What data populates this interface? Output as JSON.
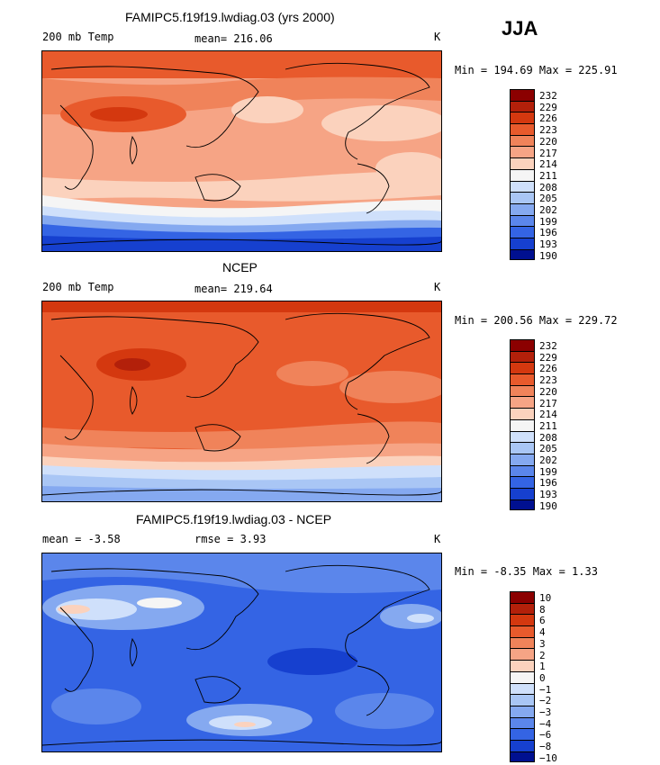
{
  "season": "JJA",
  "panels": [
    {
      "id": "model",
      "title": "FAMIPC5.f19f19.lwdiag.03 (yrs 2000)",
      "left_label": "200 mb Temp",
      "mean_label": "mean= 216.06",
      "unit": "K",
      "minmax": "Min = 194.69 Max = 225.91",
      "levels": [
        "232",
        "229",
        "226",
        "223",
        "220",
        "217",
        "214",
        "211",
        "208",
        "205",
        "202",
        "199",
        "196",
        "193",
        "190"
      ]
    },
    {
      "id": "ncep",
      "title": "NCEP",
      "left_label": "200 mb Temp",
      "mean_label": "mean= 219.64",
      "unit": "K",
      "minmax": "Min = 200.56 Max = 229.72",
      "levels": [
        "232",
        "229",
        "226",
        "223",
        "220",
        "217",
        "214",
        "211",
        "208",
        "205",
        "202",
        "199",
        "196",
        "193",
        "190"
      ]
    },
    {
      "id": "diff",
      "title": "FAMIPC5.f19f19.lwdiag.03 - NCEP",
      "left_label": "mean =  -3.58",
      "mean_label": "rmse =   3.93",
      "unit": "K",
      "minmax": "Min =  -8.35 Max =   1.33",
      "levels": [
        "10",
        "8",
        "6",
        "4",
        "3",
        "2",
        "1",
        "0",
        "−1",
        "−2",
        "−3",
        "−4",
        "−6",
        "−8",
        "−10"
      ]
    }
  ],
  "colors": {
    "scale": [
      "#8b0000",
      "#b3200a",
      "#d4380f",
      "#e85a2c",
      "#f0835a",
      "#f6a485",
      "#fbd2bd",
      "#f5f5f5",
      "#cfe0fb",
      "#a9c6f5",
      "#85a9f0",
      "#5b86eb",
      "#3464e4",
      "#1640cf",
      "#001090"
    ],
    "coast": "#000000"
  }
}
